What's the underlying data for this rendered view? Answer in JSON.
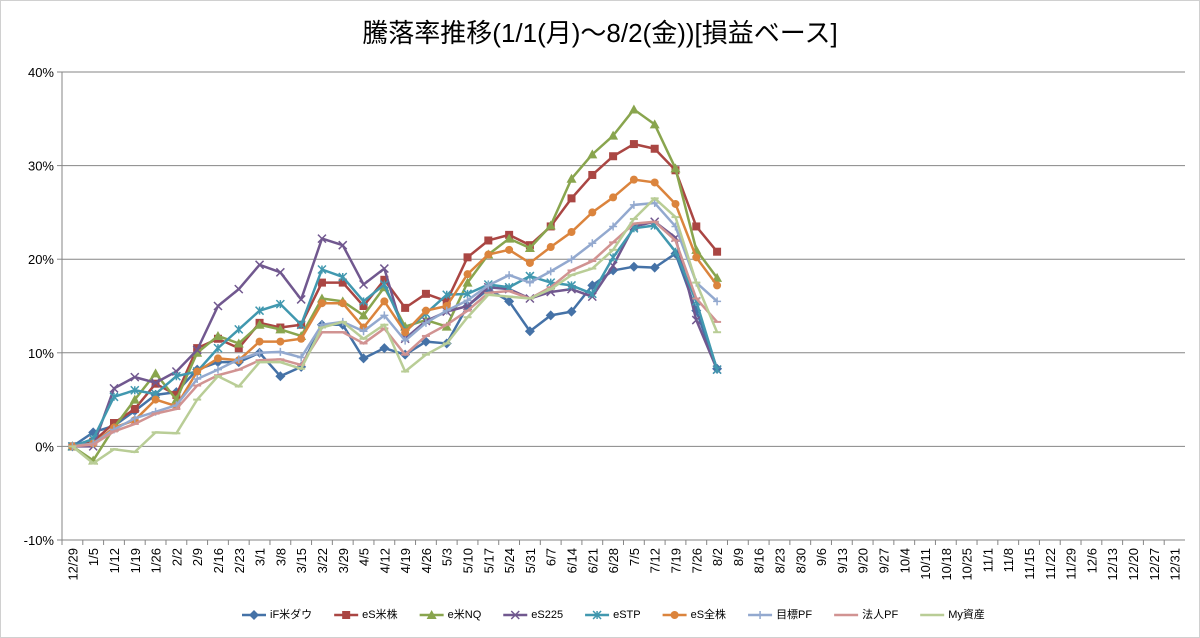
{
  "chart_data": {
    "type": "line",
    "title": "騰落率推移(1/1(月)～8/2(金))[損益ベース]",
    "categories": [
      "12/29",
      "1/5",
      "1/12",
      "1/19",
      "1/26",
      "2/2",
      "2/9",
      "2/16",
      "2/23",
      "3/1",
      "3/8",
      "3/15",
      "3/22",
      "3/29",
      "4/5",
      "4/12",
      "4/19",
      "4/26",
      "5/3",
      "5/10",
      "5/17",
      "5/24",
      "5/31",
      "6/7",
      "6/14",
      "6/21",
      "6/28",
      "7/5",
      "7/12",
      "7/19",
      "7/26",
      "8/2",
      "8/9",
      "8/16",
      "8/23",
      "8/30",
      "9/6",
      "9/13",
      "9/20",
      "9/27",
      "10/4",
      "10/11",
      "10/18",
      "10/25",
      "11/1",
      "11/8",
      "11/15",
      "11/22",
      "11/29",
      "12/6",
      "12/13",
      "12/20",
      "12/27",
      "12/31"
    ],
    "ylim": [
      -10,
      40
    ],
    "yticks": [
      {
        "value": -10,
        "label": "-10%"
      },
      {
        "value": 0,
        "label": "0%"
      },
      {
        "value": 10,
        "label": "10%"
      },
      {
        "value": 20,
        "label": "20%"
      },
      {
        "value": 30,
        "label": "30%"
      },
      {
        "value": 40,
        "label": "40%"
      }
    ],
    "grid": true,
    "legend": "bottom",
    "series": [
      {
        "name": "iF米ダウ",
        "color": "#4572A7",
        "marker": "diamond",
        "values": [
          0,
          1.5,
          2.2,
          3.8,
          5.5,
          5.8,
          8.2,
          9.0,
          9.0,
          10.0,
          7.5,
          8.5,
          13.0,
          13.0,
          9.4,
          10.5,
          9.8,
          11.2,
          11.0,
          15.0,
          16.8,
          15.5,
          12.3,
          14.0,
          14.4,
          17.2,
          18.8,
          19.2,
          19.1,
          20.6,
          14.5,
          8.3,
          null,
          null,
          null,
          null,
          null,
          null,
          null,
          null,
          null,
          null,
          null,
          null,
          null,
          null,
          null,
          null,
          null,
          null,
          null,
          null,
          null,
          null
        ]
      },
      {
        "name": "eS米株",
        "color": "#AA4643",
        "marker": "square",
        "values": [
          0,
          0.5,
          2.5,
          4.0,
          6.7,
          5.5,
          10.5,
          11.5,
          10.5,
          13.2,
          12.7,
          13.0,
          17.5,
          17.5,
          15.0,
          17.8,
          14.8,
          16.3,
          15.5,
          20.2,
          22.0,
          22.6,
          21.5,
          23.5,
          26.5,
          29.0,
          31.0,
          32.3,
          31.8,
          29.5,
          23.5,
          20.8,
          null,
          null,
          null,
          null,
          null,
          null,
          null,
          null,
          null,
          null,
          null,
          null,
          null,
          null,
          null,
          null,
          null,
          null,
          null,
          null,
          null,
          null
        ]
      },
      {
        "name": "e米NQ",
        "color": "#89A54E",
        "marker": "triangle",
        "values": [
          0,
          -1.5,
          2.0,
          5.0,
          7.8,
          5.0,
          10.0,
          11.8,
          11.0,
          13.0,
          12.5,
          11.8,
          15.8,
          15.5,
          14.0,
          17.0,
          12.8,
          13.5,
          12.8,
          17.5,
          20.5,
          22.2,
          21.2,
          23.6,
          28.6,
          31.2,
          33.2,
          36.0,
          34.4,
          29.7,
          21.0,
          18.0,
          null,
          null,
          null,
          null,
          null,
          null,
          null,
          null,
          null,
          null,
          null,
          null,
          null,
          null,
          null,
          null,
          null,
          null,
          null,
          null,
          null,
          null
        ]
      },
      {
        "name": "eS225",
        "color": "#71588F",
        "marker": "x",
        "values": [
          0,
          0.0,
          6.2,
          7.4,
          6.8,
          8.0,
          10.3,
          15.0,
          16.8,
          19.4,
          18.6,
          15.7,
          22.2,
          21.5,
          17.3,
          19.0,
          11.5,
          13.4,
          14.4,
          15.0,
          17.0,
          16.8,
          15.8,
          16.5,
          16.8,
          16.0,
          19.3,
          23.5,
          24.0,
          22.3,
          13.5,
          8.2,
          null,
          null,
          null,
          null,
          null,
          null,
          null,
          null,
          null,
          null,
          null,
          null,
          null,
          null,
          null,
          null,
          null,
          null,
          null,
          null,
          null,
          null
        ]
      },
      {
        "name": "eSTP",
        "color": "#4198AF",
        "marker": "star",
        "values": [
          0,
          0.8,
          5.3,
          6.0,
          5.6,
          7.5,
          8.0,
          10.5,
          12.5,
          14.5,
          15.2,
          13.0,
          18.9,
          18.1,
          15.5,
          17.3,
          12.3,
          14.2,
          16.2,
          16.3,
          17.3,
          17.0,
          18.2,
          17.5,
          17.2,
          16.3,
          20.2,
          23.3,
          23.6,
          20.8,
          15.5,
          8.2,
          null,
          null,
          null,
          null,
          null,
          null,
          null,
          null,
          null,
          null,
          null,
          null,
          null,
          null,
          null,
          null,
          null,
          null,
          null,
          null,
          null,
          null
        ]
      },
      {
        "name": "eS全株",
        "color": "#DB843D",
        "marker": "circle",
        "values": [
          0,
          0.3,
          2.0,
          2.8,
          5.0,
          4.3,
          8.0,
          9.4,
          9.2,
          11.2,
          11.2,
          11.5,
          15.3,
          15.3,
          12.7,
          15.5,
          12.2,
          14.5,
          15.0,
          18.4,
          20.5,
          21.0,
          19.6,
          21.3,
          22.9,
          25.0,
          26.6,
          28.5,
          28.2,
          25.9,
          20.2,
          17.2,
          null,
          null,
          null,
          null,
          null,
          null,
          null,
          null,
          null,
          null,
          null,
          null,
          null,
          null,
          null,
          null,
          null,
          null,
          null,
          null,
          null,
          null
        ]
      },
      {
        "name": "目標PF",
        "color": "#93A9CF",
        "marker": "plus",
        "values": [
          0,
          0.3,
          1.8,
          3.0,
          3.7,
          4.4,
          7.2,
          8.2,
          9.3,
          10.0,
          10.1,
          9.5,
          13.0,
          13.3,
          12.3,
          14.0,
          11.3,
          13.2,
          14.5,
          15.6,
          17.2,
          18.3,
          17.5,
          18.7,
          20.0,
          21.7,
          23.5,
          25.8,
          26.0,
          23.5,
          17.5,
          15.5,
          null,
          null,
          null,
          null,
          null,
          null,
          null,
          null,
          null,
          null,
          null,
          null,
          null,
          null,
          null,
          null,
          null,
          null,
          null,
          null,
          null,
          null
        ]
      },
      {
        "name": "法人PF",
        "color": "#D19392",
        "marker": "dash",
        "values": [
          0,
          0.2,
          1.6,
          2.4,
          3.5,
          4.0,
          6.5,
          7.6,
          8.2,
          9.2,
          9.3,
          8.7,
          12.2,
          12.2,
          11.0,
          12.6,
          9.8,
          11.8,
          13.0,
          14.5,
          16.4,
          16.6,
          15.8,
          17.0,
          18.8,
          19.8,
          21.8,
          23.8,
          24.0,
          22.0,
          15.8,
          13.3,
          null,
          null,
          null,
          null,
          null,
          null,
          null,
          null,
          null,
          null,
          null,
          null,
          null,
          null,
          null,
          null,
          null,
          null,
          null,
          null,
          null,
          null
        ]
      },
      {
        "name": "My資産",
        "color": "#B9CD96",
        "marker": "dash",
        "values": [
          0,
          -1.8,
          -0.3,
          -0.6,
          1.5,
          1.4,
          5.0,
          7.5,
          6.4,
          9.0,
          9.0,
          8.3,
          12.7,
          13.3,
          11.5,
          13.0,
          8.0,
          9.8,
          11.0,
          13.8,
          16.2,
          16.0,
          15.8,
          16.8,
          18.3,
          19.0,
          21.0,
          24.3,
          26.5,
          24.5,
          17.5,
          12.2,
          null,
          null,
          null,
          null,
          null,
          null,
          null,
          null,
          null,
          null,
          null,
          null,
          null,
          null,
          null,
          null,
          null,
          null,
          null,
          null,
          null,
          null
        ]
      }
    ]
  }
}
